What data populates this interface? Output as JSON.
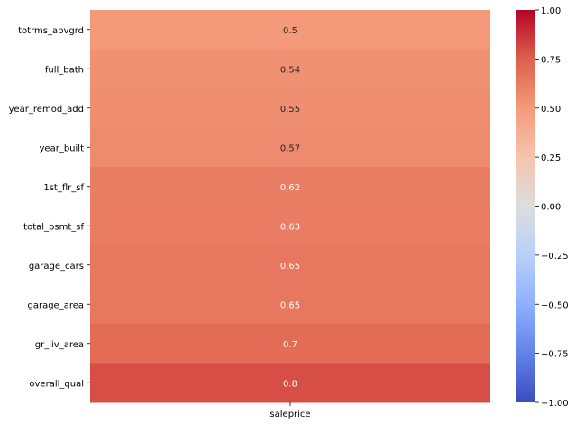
{
  "chart_data": {
    "type": "heatmap",
    "title": "",
    "xlabel": "",
    "ylabel": "",
    "columns": [
      "saleprice"
    ],
    "rows": [
      "totrms_abvgrd",
      "full_bath",
      "year_remod_add",
      "year_built",
      "1st_flr_sf",
      "total_bsmt_sf",
      "garage_cars",
      "garage_area",
      "gr_liv_area",
      "overall_qual"
    ],
    "values": [
      [
        0.5
      ],
      [
        0.54
      ],
      [
        0.55
      ],
      [
        0.57
      ],
      [
        0.62
      ],
      [
        0.63
      ],
      [
        0.65
      ],
      [
        0.65
      ],
      [
        0.7
      ],
      [
        0.8
      ]
    ],
    "value_labels": [
      "0.5",
      "0.54",
      "0.55",
      "0.57",
      "0.62",
      "0.63",
      "0.65",
      "0.65",
      "0.7",
      "0.8"
    ],
    "annotated": true,
    "colormap": "coolwarm",
    "vmin": -1.0,
    "vmax": 1.0,
    "colorbar": {
      "ticks": [
        1.0,
        0.75,
        0.5,
        0.25,
        0.0,
        -0.25,
        -0.5,
        -0.75,
        -1.0
      ],
      "tick_labels": [
        "1.00",
        "0.75",
        "0.50",
        "0.25",
        "0.00",
        "−0.25",
        "−0.50",
        "−0.75",
        "−1.00"
      ],
      "placement": "right"
    },
    "grid": false
  }
}
